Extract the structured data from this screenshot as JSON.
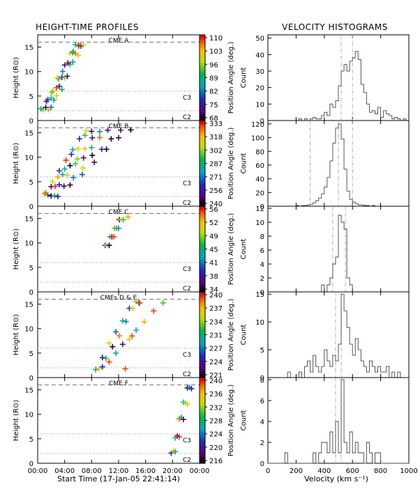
{
  "chart_data": {
    "type": "figure",
    "left_title": "HEIGHT-TIME PROFILES",
    "right_title": "VELOCITY HISTOGRAMS",
    "left_xlabel": "Start Time (17-Jan-05 22:41:14)",
    "right_xlabel": "Velocity (km s⁻¹)",
    "height_ylabel": "Height (R⊙)",
    "colorbar_label": "Position Angle (deg.)",
    "count_label": "Count",
    "line_labels": [
      "C3",
      "C2"
    ],
    "left_xticks": [
      "00:00",
      "04:00",
      "08:00",
      "12:00",
      "16:00",
      "20:00",
      "00:00"
    ],
    "left_xrange_hours": [
      0,
      24
    ],
    "height_yticks": [
      0,
      5,
      10,
      15
    ],
    "height_yrange": [
      0,
      17.5
    ],
    "c3_height": 6,
    "c2_height": 2,
    "limit_height": 16,
    "right_xticks": [
      0,
      200,
      400,
      600,
      800,
      1000
    ],
    "right_xrange": [
      0,
      1000
    ],
    "cmes": [
      {
        "name": "CME A",
        "colorbar_ticks": [
          110,
          103,
          96,
          89,
          82,
          75,
          68
        ],
        "pa_range": [
          68,
          110
        ],
        "tracks": [
          {
            "t": [
              0.8,
              1.5,
              2.3,
              3.1,
              4.0,
              4.8,
              5.6
            ],
            "pa": [
              95,
              80,
              102,
              88,
              72,
              98,
              85
            ]
          },
          {
            "t": [
              1.2,
              2.0,
              2.8,
              3.6,
              4.4,
              5.2,
              6.0
            ],
            "pa": [
              70,
              92,
              108,
              76,
              100,
              84,
              94
            ]
          },
          {
            "t": [
              1.6,
              2.4,
              3.2,
              4.0,
              4.8,
              5.6,
              6.4
            ],
            "pa": [
              104,
              86,
              74,
              96,
              90,
              106,
              78
            ]
          },
          {
            "t": [
              2.0,
              2.8,
              3.6,
              4.4,
              5.2,
              6.0,
              6.8
            ],
            "pa": [
              82,
              99,
              91,
              71,
              88,
              103,
              97
            ]
          },
          {
            "t": [
              0.5,
              1.3,
              2.1,
              2.9,
              3.7,
              4.5,
              5.3,
              6.1
            ],
            "pa": [
              89,
              75,
              94,
              101,
              83,
              73,
              92,
              109
            ]
          }
        ],
        "hist_yticks": [
          0,
          10,
          20,
          30,
          40,
          50
        ],
        "hist_ymax": 52,
        "vlines": [
          520,
          600
        ],
        "hist": {
          "start": 0,
          "width": 20,
          "counts": [
            0,
            0,
            0,
            0,
            0,
            0,
            0,
            0,
            0,
            0,
            0,
            1,
            0,
            1,
            0,
            1,
            2,
            1,
            1,
            3,
            5,
            3,
            10,
            8,
            12,
            21,
            30,
            34,
            30,
            36,
            38,
            42,
            37,
            22,
            17,
            10,
            5,
            6,
            4,
            8,
            2,
            6,
            4,
            3,
            1,
            2,
            1,
            0,
            1,
            0
          ]
        }
      },
      {
        "name": "CME B",
        "colorbar_ticks": [
          333,
          318,
          302,
          287,
          271,
          256,
          240
        ],
        "pa_range": [
          240,
          333
        ],
        "tracks": [
          {
            "t": [
              1.0,
              2.0,
              3.0,
              4.0,
              5.0,
              6.0,
              7.0,
              8.0
            ],
            "pa": [
              300,
              250,
              320,
              280,
              262,
              310,
              295,
              245
            ]
          },
          {
            "t": [
              1.5,
              2.6,
              3.7,
              4.8,
              5.9,
              7.0,
              8.1,
              9.2
            ],
            "pa": [
              270,
              330,
              285,
              242,
              300,
              316,
              258,
              275
            ]
          },
          {
            "t": [
              2.0,
              3.2,
              4.4,
              5.6,
              6.8,
              8.0,
              9.2,
              10.4
            ],
            "pa": [
              244,
              262,
              318,
              296,
              249,
              283,
              326,
              251
            ]
          },
          {
            "t": [
              2.5,
              3.9,
              5.3,
              6.7,
              8.1,
              9.5,
              10.9,
              12.3
            ],
            "pa": [
              290,
              247,
              272,
              305,
              241,
              260,
              244,
              248
            ]
          },
          {
            "t": [
              1.2,
              2.2,
              3.2,
              4.2,
              5.2,
              6.2,
              7.2
            ],
            "pa": [
              325,
              305,
              265,
              330,
              278,
              256,
              312
            ]
          },
          {
            "t": [
              3.0,
              4.8,
              6.6,
              8.4,
              10.2,
              12.0,
              13.8
            ],
            "pa": [
              255,
              243,
              268,
              250,
              242,
              246,
              241
            ]
          }
        ],
        "hist_yticks": [
          0,
          20,
          40,
          60,
          80,
          100,
          120
        ],
        "hist_ymax": 125,
        "vlines": [
          300,
          500,
          600
        ],
        "hist": {
          "start": 0,
          "width": 20,
          "counts": [
            0,
            0,
            0,
            0,
            0,
            0,
            0,
            0,
            0,
            0,
            1,
            0,
            1,
            1,
            2,
            3,
            5,
            8,
            12,
            18,
            28,
            42,
            66,
            92,
            114,
            120,
            98,
            54,
            22,
            10,
            6,
            4,
            2,
            2,
            1,
            1,
            0,
            1,
            0,
            0,
            0,
            0,
            0,
            0,
            0,
            0,
            0,
            0,
            0,
            0
          ]
        }
      },
      {
        "name": "CME C",
        "colorbar_ticks": [
          56,
          52,
          49,
          45,
          41,
          38,
          34
        ],
        "pa_range": [
          34,
          56
        ],
        "tracks": [
          {
            "t": [
              10.0,
              10.7,
              11.4,
              12.1
            ],
            "pa": [
              40,
              48,
              54,
              36
            ]
          },
          {
            "t": [
              10.3,
              11.0,
              11.7,
              12.4
            ],
            "pa": [
              52,
              38,
              45,
              50
            ]
          },
          {
            "t": [
              10.6,
              11.3,
              12.0,
              12.7,
              13.4
            ],
            "pa": [
              35,
              55,
              42,
              47,
              53
            ]
          }
        ],
        "hist_yticks": [
          0,
          2,
          4,
          6,
          8,
          10,
          12
        ],
        "hist_ymax": 12.3,
        "vlines": [
          460,
          550
        ],
        "hist": {
          "start": 0,
          "width": 20,
          "counts": [
            0,
            0,
            0,
            0,
            0,
            0,
            0,
            0,
            0,
            0,
            0,
            0,
            0,
            0,
            0,
            0,
            0,
            0,
            0,
            1,
            0,
            1,
            2,
            4,
            5,
            11,
            10,
            9,
            2,
            1,
            0,
            0,
            0,
            0,
            0,
            0,
            0,
            0,
            0,
            0,
            0,
            0,
            0,
            0,
            0,
            0,
            0,
            0,
            0,
            0
          ]
        }
      },
      {
        "name": "CMEs D & E",
        "colorbar_ticks": [
          240,
          237,
          234,
          231,
          227,
          224,
          221
        ],
        "pa_range": [
          220,
          240
        ],
        "tracks": [
          {
            "t": [
              8.6,
              9.6,
              10.6,
              11.6,
              12.6,
              13.6,
              14.6
            ],
            "pa": [
              228,
              222,
              235,
              226,
              230,
              224,
              233
            ]
          },
          {
            "t": [
              9.1,
              10.1,
              11.1,
              12.1,
              13.1,
              14.1,
              15.1
            ],
            "pa": [
              236,
              230,
              221,
              238,
              227,
              234,
              223
            ]
          },
          {
            "t": [
              9.6,
              10.6,
              11.6,
              12.6,
              13.6,
              14.6,
              15.8,
              17.2,
              18.6
            ],
            "pa": [
              225,
              239,
              229,
              223,
              236,
              228,
              237,
              239,
              232
            ]
          },
          {
            "t": [
              13.0,
              14.0,
              15.0
            ],
            "pa": [
              239,
              239,
              239
            ]
          }
        ],
        "hist_yticks": [
          0,
          5,
          10,
          15
        ],
        "hist_ymax": 15.4,
        "vlines": [
          480,
          520
        ],
        "hist": {
          "start": 0,
          "width": 20,
          "counts": [
            0,
            0,
            0,
            0,
            0,
            0,
            0,
            1,
            0,
            0,
            0,
            1,
            0,
            2,
            3,
            1,
            4,
            2,
            1,
            2,
            5,
            3,
            2,
            4,
            3,
            6,
            15,
            12,
            9,
            6,
            4,
            7,
            5,
            3,
            2,
            1,
            3,
            2,
            1,
            2,
            1,
            1,
            2,
            0,
            1,
            0,
            1,
            0,
            0,
            0
          ]
        }
      },
      {
        "name": "CME F",
        "colorbar_ticks": [
          240,
          236,
          232,
          228,
          224,
          220,
          216
        ],
        "pa_range": [
          216,
          240
        ],
        "tracks": [
          {
            "t": [
              19.8,
              20.4,
              21.0,
              21.6,
              22.2
            ],
            "pa": [
              222,
              230,
              238,
              226,
              217
            ]
          },
          {
            "t": [
              20.1,
              20.7,
              21.3,
              21.9,
              22.5
            ],
            "pa": [
              236,
              219,
              228,
              232,
              224
            ]
          },
          {
            "t": [
              20.4,
              21.0,
              21.6,
              22.2,
              22.8
            ],
            "pa": [
              229,
              239,
              218,
              235,
              221
            ]
          }
        ],
        "hist_yticks": [
          0,
          2,
          4,
          6,
          8
        ],
        "hist_ymax": 8.2,
        "vlines": [
          480,
          520
        ],
        "hist": {
          "start": 0,
          "width": 20,
          "counts": [
            0,
            0,
            0,
            0,
            0,
            0,
            1,
            0,
            0,
            0,
            0,
            0,
            0,
            0,
            0,
            0,
            1,
            0,
            1,
            2,
            2,
            1,
            3,
            1,
            4,
            1,
            8,
            2,
            1,
            3,
            1,
            2,
            1,
            1,
            0,
            2,
            1,
            0,
            1,
            1,
            0,
            0,
            0,
            0,
            0,
            0,
            0,
            0,
            0,
            0
          ]
        }
      }
    ]
  }
}
